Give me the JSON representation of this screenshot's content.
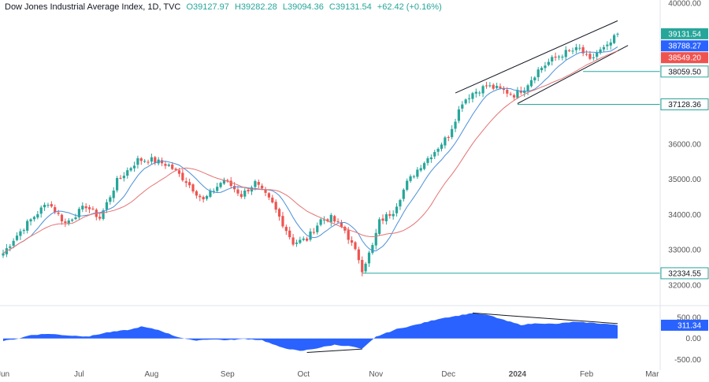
{
  "header": {
    "title": "Dow Jones Industrial Average Index, 1D, TVC",
    "open": "O39127.97",
    "high": "H39282.28",
    "low": "L39094.36",
    "close": "C39131.54",
    "change": "+62.42 (+0.16%)"
  },
  "colors": {
    "up": "#26a69a",
    "down": "#ef5350",
    "ma_fast": "#4a90d9",
    "ma_slow": "#e57373",
    "line": "#26a69a",
    "osc": "#2962ff"
  },
  "chart_data": {
    "type": "candlestick",
    "price_axis": {
      "ticks": [
        "40000.00",
        "36000.00",
        "35000.00",
        "34000.00",
        "33000.00",
        "32000.00"
      ],
      "tick_values": [
        40000,
        36000,
        35000,
        34000,
        33000,
        32000
      ],
      "range": [
        31640,
        40000
      ]
    },
    "time_axis": {
      "labels": [
        "Jun",
        "Jul",
        "Aug",
        "Sep",
        "Oct",
        "Nov",
        "Dec",
        "2024",
        "Feb",
        "Mar"
      ],
      "label_bars": [
        0,
        22,
        43,
        65,
        87,
        108,
        129,
        149,
        169,
        188
      ]
    },
    "ohlc_control_points": [
      {
        "bar": 0,
        "price": 32900
      },
      {
        "bar": 3,
        "price": 33300
      },
      {
        "bar": 7,
        "price": 33750
      },
      {
        "bar": 13,
        "price": 34350
      },
      {
        "bar": 18,
        "price": 33750
      },
      {
        "bar": 24,
        "price": 34250
      },
      {
        "bar": 28,
        "price": 33900
      },
      {
        "bar": 33,
        "price": 34950
      },
      {
        "bar": 39,
        "price": 35550
      },
      {
        "bar": 43,
        "price": 35550
      },
      {
        "bar": 48,
        "price": 35400
      },
      {
        "bar": 53,
        "price": 34950
      },
      {
        "bar": 58,
        "price": 34400
      },
      {
        "bar": 64,
        "price": 35000
      },
      {
        "bar": 69,
        "price": 34550
      },
      {
        "bar": 73,
        "price": 34900
      },
      {
        "bar": 78,
        "price": 34300
      },
      {
        "bar": 84,
        "price": 33200
      },
      {
        "bar": 88,
        "price": 33300
      },
      {
        "bar": 92,
        "price": 33850
      },
      {
        "bar": 95,
        "price": 33900
      },
      {
        "bar": 99,
        "price": 33550
      },
      {
        "bar": 103,
        "price": 32750
      },
      {
        "bar": 104,
        "price": 32450
      },
      {
        "bar": 107,
        "price": 33100
      },
      {
        "bar": 109,
        "price": 33800
      },
      {
        "bar": 113,
        "price": 34100
      },
      {
        "bar": 117,
        "price": 34900
      },
      {
        "bar": 121,
        "price": 35400
      },
      {
        "bar": 125,
        "price": 35800
      },
      {
        "bar": 129,
        "price": 36250
      },
      {
        "bar": 133,
        "price": 37200
      },
      {
        "bar": 136,
        "price": 37450
      },
      {
        "bar": 140,
        "price": 37650
      },
      {
        "bar": 144,
        "price": 37550
      },
      {
        "bar": 148,
        "price": 37400
      },
      {
        "bar": 151,
        "price": 37600
      },
      {
        "bar": 155,
        "price": 38100
      },
      {
        "bar": 159,
        "price": 38400
      },
      {
        "bar": 163,
        "price": 38600
      },
      {
        "bar": 167,
        "price": 38700
      },
      {
        "bar": 170,
        "price": 38350
      },
      {
        "bar": 172,
        "price": 38600
      },
      {
        "bar": 175,
        "price": 38750
      },
      {
        "bar": 178,
        "price": 39130
      }
    ],
    "bar_count": 179,
    "moving_averages": [
      {
        "period": 9,
        "color": "#4a90d9"
      },
      {
        "period": 21,
        "color": "#e57373"
      }
    ],
    "horizontal_levels": [
      {
        "label": "38059.50",
        "value": 38059.5,
        "start_bar": 168
      },
      {
        "label": "37128.36",
        "value": 37128.36,
        "start_bar": 149
      },
      {
        "label": "32334.55",
        "value": 32334.55,
        "start_bar": 104
      }
    ],
    "price_badges": [
      {
        "label": "39131.54",
        "value": 39131.54,
        "color": "#26a69a"
      },
      {
        "label": "38788.27",
        "value": 38788.27,
        "color": "#2962ff"
      },
      {
        "label": "38549.20",
        "value": 38549.2,
        "color": "#ef5350"
      }
    ],
    "channel": [
      {
        "from": {
          "bar": 131,
          "price": 37450
        },
        "to": {
          "bar": 178,
          "price": 39500
        }
      },
      {
        "from": {
          "bar": 149,
          "price": 37150
        },
        "to": {
          "bar": 181,
          "price": 38800
        }
      }
    ],
    "oscillator": {
      "ticks": [
        "500.00",
        "0.00",
        "-500.00"
      ],
      "tick_values": [
        500,
        0,
        -500
      ],
      "range": [
        -600,
        700
      ],
      "current_label": "311.34",
      "current_value": 311.34,
      "control_points": [
        {
          "bar": 0,
          "value": -60
        },
        {
          "bar": 4,
          "value": -10
        },
        {
          "bar": 8,
          "value": 80
        },
        {
          "bar": 13,
          "value": 110
        },
        {
          "bar": 19,
          "value": 70
        },
        {
          "bar": 25,
          "value": 50
        },
        {
          "bar": 30,
          "value": 140
        },
        {
          "bar": 37,
          "value": 210
        },
        {
          "bar": 40,
          "value": 280
        },
        {
          "bar": 45,
          "value": 200
        },
        {
          "bar": 50,
          "value": 50
        },
        {
          "bar": 55,
          "value": -50
        },
        {
          "bar": 60,
          "value": -20
        },
        {
          "bar": 65,
          "value": -40
        },
        {
          "bar": 70,
          "value": -10
        },
        {
          "bar": 75,
          "value": -40
        },
        {
          "bar": 80,
          "value": -200
        },
        {
          "bar": 86,
          "value": -300
        },
        {
          "bar": 91,
          "value": -230
        },
        {
          "bar": 96,
          "value": -150
        },
        {
          "bar": 101,
          "value": -190
        },
        {
          "bar": 104,
          "value": -250
        },
        {
          "bar": 108,
          "value": 40
        },
        {
          "bar": 114,
          "value": 220
        },
        {
          "bar": 120,
          "value": 330
        },
        {
          "bar": 127,
          "value": 480
        },
        {
          "bar": 132,
          "value": 540
        },
        {
          "bar": 136,
          "value": 600
        },
        {
          "bar": 141,
          "value": 540
        },
        {
          "bar": 146,
          "value": 410
        },
        {
          "bar": 150,
          "value": 320
        },
        {
          "bar": 155,
          "value": 360
        },
        {
          "bar": 160,
          "value": 340
        },
        {
          "bar": 165,
          "value": 390
        },
        {
          "bar": 170,
          "value": 370
        },
        {
          "bar": 175,
          "value": 340
        },
        {
          "bar": 178,
          "value": 311
        }
      ],
      "divergence_line": [
        {
          "bar": 136,
          "value": 600
        },
        {
          "bar": 178,
          "value": 350
        }
      ],
      "low_line": [
        {
          "bar": 88,
          "value": -330
        },
        {
          "bar": 104,
          "value": -250
        }
      ]
    }
  }
}
